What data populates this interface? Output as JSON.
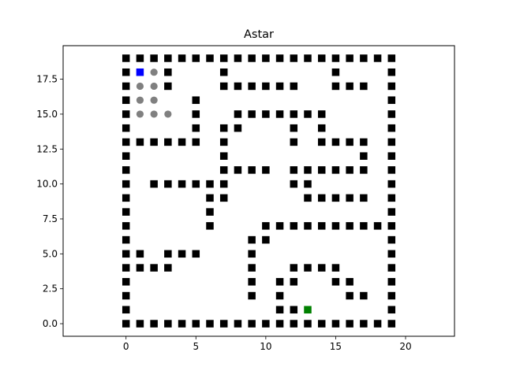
{
  "chart_data": {
    "type": "scatter",
    "title": "Astar",
    "xlabel": "",
    "ylabel": "",
    "xlim": [
      -4.5,
      23.5
    ],
    "ylim": [
      -0.9,
      19.9
    ],
    "grid": false,
    "x_ticks": [
      0,
      5,
      10,
      15,
      20
    ],
    "y_ticks": [
      0.0,
      2.5,
      5.0,
      7.5,
      10.0,
      12.5,
      15.0,
      17.5
    ],
    "x_tick_labels": [
      "0",
      "5",
      "10",
      "15",
      "20"
    ],
    "y_tick_labels": [
      "0.0",
      "2.5",
      "5.0",
      "7.5",
      "10.0",
      "12.5",
      "15.0",
      "17.5"
    ],
    "series": [
      {
        "marker": "square",
        "color": "#000000",
        "points": [
          [
            0,
            19
          ],
          [
            1,
            19
          ],
          [
            2,
            19
          ],
          [
            3,
            19
          ],
          [
            4,
            19
          ],
          [
            5,
            19
          ],
          [
            6,
            19
          ],
          [
            7,
            19
          ],
          [
            8,
            19
          ],
          [
            9,
            19
          ],
          [
            10,
            19
          ],
          [
            11,
            19
          ],
          [
            12,
            19
          ],
          [
            13,
            19
          ],
          [
            14,
            19
          ],
          [
            15,
            19
          ],
          [
            16,
            19
          ],
          [
            17,
            19
          ],
          [
            18,
            19
          ],
          [
            19,
            19
          ],
          [
            0,
            0
          ],
          [
            1,
            0
          ],
          [
            2,
            0
          ],
          [
            3,
            0
          ],
          [
            4,
            0
          ],
          [
            5,
            0
          ],
          [
            6,
            0
          ],
          [
            7,
            0
          ],
          [
            8,
            0
          ],
          [
            9,
            0
          ],
          [
            10,
            0
          ],
          [
            11,
            0
          ],
          [
            12,
            0
          ],
          [
            13,
            0
          ],
          [
            14,
            0
          ],
          [
            15,
            0
          ],
          [
            16,
            0
          ],
          [
            17,
            0
          ],
          [
            18,
            0
          ],
          [
            19,
            0
          ],
          [
            0,
            18
          ],
          [
            0,
            17
          ],
          [
            0,
            16
          ],
          [
            0,
            15
          ],
          [
            0,
            14
          ],
          [
            0,
            13
          ],
          [
            0,
            12
          ],
          [
            0,
            11
          ],
          [
            0,
            10
          ],
          [
            0,
            9
          ],
          [
            0,
            8
          ],
          [
            0,
            7
          ],
          [
            0,
            6
          ],
          [
            0,
            5
          ],
          [
            0,
            4
          ],
          [
            0,
            3
          ],
          [
            0,
            2
          ],
          [
            0,
            1
          ],
          [
            19,
            18
          ],
          [
            19,
            17
          ],
          [
            19,
            16
          ],
          [
            19,
            15
          ],
          [
            19,
            14
          ],
          [
            19,
            13
          ],
          [
            19,
            12
          ],
          [
            19,
            11
          ],
          [
            19,
            10
          ],
          [
            19,
            9
          ],
          [
            19,
            8
          ],
          [
            19,
            7
          ],
          [
            19,
            6
          ],
          [
            19,
            5
          ],
          [
            19,
            4
          ],
          [
            19,
            3
          ],
          [
            19,
            2
          ],
          [
            19,
            1
          ],
          [
            3,
            18
          ],
          [
            7,
            18
          ],
          [
            15,
            18
          ],
          [
            3,
            17
          ],
          [
            7,
            17
          ],
          [
            8,
            17
          ],
          [
            9,
            17
          ],
          [
            10,
            17
          ],
          [
            11,
            17
          ],
          [
            12,
            17
          ],
          [
            15,
            17
          ],
          [
            16,
            17
          ],
          [
            17,
            17
          ],
          [
            5,
            16
          ],
          [
            5,
            15
          ],
          [
            8,
            15
          ],
          [
            9,
            15
          ],
          [
            10,
            15
          ],
          [
            11,
            15
          ],
          [
            12,
            15
          ],
          [
            13,
            15
          ],
          [
            14,
            15
          ],
          [
            5,
            14
          ],
          [
            7,
            14
          ],
          [
            8,
            14
          ],
          [
            12,
            14
          ],
          [
            14,
            14
          ],
          [
            1,
            13
          ],
          [
            2,
            13
          ],
          [
            3,
            13
          ],
          [
            4,
            13
          ],
          [
            5,
            13
          ],
          [
            7,
            13
          ],
          [
            12,
            13
          ],
          [
            14,
            13
          ],
          [
            15,
            13
          ],
          [
            16,
            13
          ],
          [
            17,
            13
          ],
          [
            7,
            12
          ],
          [
            17,
            12
          ],
          [
            7,
            11
          ],
          [
            8,
            11
          ],
          [
            9,
            11
          ],
          [
            10,
            11
          ],
          [
            12,
            11
          ],
          [
            13,
            11
          ],
          [
            14,
            11
          ],
          [
            15,
            11
          ],
          [
            16,
            11
          ],
          [
            17,
            11
          ],
          [
            2,
            10
          ],
          [
            3,
            10
          ],
          [
            4,
            10
          ],
          [
            5,
            10
          ],
          [
            6,
            10
          ],
          [
            7,
            10
          ],
          [
            12,
            10
          ],
          [
            13,
            10
          ],
          [
            6,
            9
          ],
          [
            7,
            9
          ],
          [
            13,
            9
          ],
          [
            14,
            9
          ],
          [
            15,
            9
          ],
          [
            16,
            9
          ],
          [
            17,
            9
          ],
          [
            6,
            8
          ],
          [
            6,
            7
          ],
          [
            10,
            7
          ],
          [
            11,
            7
          ],
          [
            12,
            7
          ],
          [
            13,
            7
          ],
          [
            14,
            7
          ],
          [
            15,
            7
          ],
          [
            16,
            7
          ],
          [
            17,
            7
          ],
          [
            18,
            7
          ],
          [
            9,
            6
          ],
          [
            10,
            6
          ],
          [
            1,
            5
          ],
          [
            3,
            5
          ],
          [
            4,
            5
          ],
          [
            5,
            5
          ],
          [
            9,
            5
          ],
          [
            1,
            4
          ],
          [
            2,
            4
          ],
          [
            3,
            4
          ],
          [
            9,
            4
          ],
          [
            12,
            4
          ],
          [
            13,
            4
          ],
          [
            14,
            4
          ],
          [
            15,
            4
          ],
          [
            9,
            3
          ],
          [
            11,
            3
          ],
          [
            12,
            3
          ],
          [
            15,
            3
          ],
          [
            16,
            3
          ],
          [
            9,
            2
          ],
          [
            11,
            2
          ],
          [
            16,
            2
          ],
          [
            17,
            2
          ],
          [
            11,
            1
          ],
          [
            12,
            1
          ]
        ]
      },
      {
        "marker": "circle",
        "color": "#808080",
        "points": [
          [
            2,
            18
          ],
          [
            1,
            17
          ],
          [
            2,
            17
          ],
          [
            1,
            16
          ],
          [
            2,
            16
          ],
          [
            1,
            15
          ],
          [
            2,
            15
          ],
          [
            3,
            15
          ]
        ]
      },
      {
        "marker": "square",
        "color": "#0000ff",
        "points": [
          [
            1,
            18
          ]
        ]
      },
      {
        "marker": "square",
        "color": "#008000",
        "points": [
          [
            13,
            1
          ]
        ]
      }
    ]
  }
}
